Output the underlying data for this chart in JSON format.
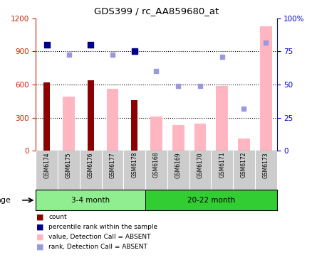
{
  "title": "GDS399 / rc_AA859680_at",
  "samples": [
    "GSM6174",
    "GSM6175",
    "GSM6176",
    "GSM6177",
    "GSM6178",
    "GSM6168",
    "GSM6169",
    "GSM6170",
    "GSM6171",
    "GSM6172",
    "GSM6173"
  ],
  "groups": [
    {
      "label": "3-4 month",
      "indices": [
        0,
        1,
        2,
        3,
        4
      ],
      "color": "#90EE90"
    },
    {
      "label": "20-22 month",
      "indices": [
        5,
        6,
        7,
        8,
        9,
        10
      ],
      "color": "#32CD32"
    }
  ],
  "count_bars": {
    "values": [
      620,
      null,
      640,
      null,
      460,
      null,
      null,
      null,
      null,
      null,
      null
    ],
    "color": "#8B0000"
  },
  "value_absent_bars": {
    "values": [
      null,
      490,
      null,
      560,
      null,
      310,
      235,
      245,
      590,
      110,
      1130
    ],
    "color": "#FFB6C1"
  },
  "percentile_rank_dots": {
    "values": [
      960,
      null,
      960,
      null,
      900,
      null,
      null,
      null,
      null,
      null,
      null
    ],
    "color": "#00008B"
  },
  "rank_absent_dots": {
    "values": [
      null,
      870,
      null,
      870,
      null,
      720,
      590,
      590,
      850,
      380,
      980
    ],
    "color": "#9999DD"
  },
  "ylim_left": [
    0,
    1200
  ],
  "ylim_right": [
    0,
    100
  ],
  "yticks_left": [
    0,
    300,
    600,
    900,
    1200
  ],
  "yticks_right": [
    0,
    25,
    50,
    75,
    100
  ],
  "left_axis_color": "#CC2200",
  "right_axis_color": "#0000CC",
  "plot_area_color": "#FFFFFF",
  "tick_label_area_color": "#CCCCCC",
  "legend_items": [
    {
      "color": "#8B0000",
      "label": "count"
    },
    {
      "color": "#00008B",
      "label": "percentile rank within the sample"
    },
    {
      "color": "#FFB6C1",
      "label": "value, Detection Call = ABSENT"
    },
    {
      "color": "#9999DD",
      "label": "rank, Detection Call = ABSENT"
    }
  ]
}
